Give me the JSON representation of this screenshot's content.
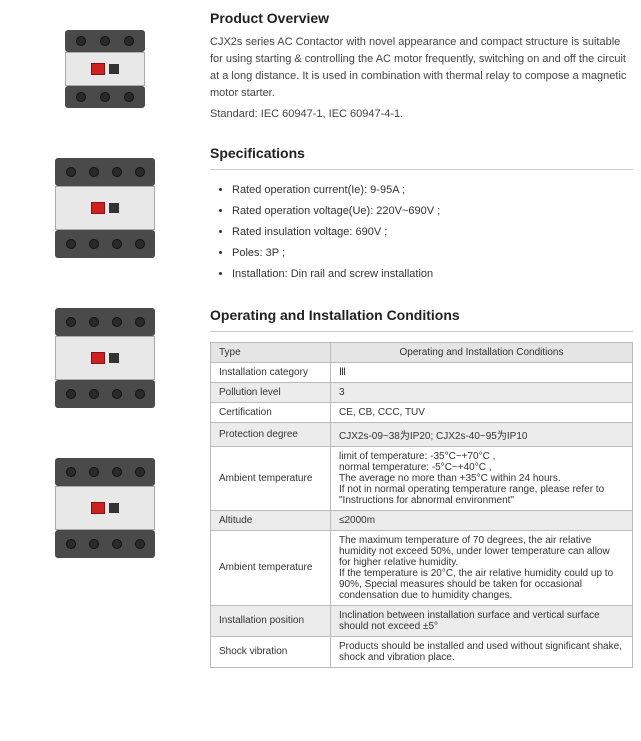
{
  "overview": {
    "heading": "Product Overview",
    "p1": "CJX2s series AC Contactor with novel appearance and compact structure is suitable for using starting & controlling the AC motor frequently, switching on and off the circuit at a long distance. It is used in combination with thermal relay to compose a magnetic motor starter.",
    "p2": "Standard: IEC 60947-1, IEC 60947-4-1."
  },
  "specs": {
    "heading": "Specifications",
    "items": [
      "Rated operation current(Ie): 9-95A ;",
      "Rated operation voltage(Ue): 220V~690V ;",
      "Rated insulation voltage: 690V ;",
      "Poles: 3P ;",
      "Installation: Din rail and screw installation"
    ]
  },
  "conditions": {
    "heading": "Operating and Installation Conditions",
    "header_type": "Type",
    "header_cond": "Operating and Installation Conditions",
    "rows": [
      {
        "label": "Installation category",
        "value": "Ⅲ",
        "bg": "white"
      },
      {
        "label": "Pollution level",
        "value": "3",
        "bg": "grey"
      },
      {
        "label": "Certification",
        "value": "CE, CB, CCC, TUV",
        "bg": "white"
      },
      {
        "label": "Protection degree",
        "value": "CJX2s-09~38为IP20; CJX2s-40~95为IP10",
        "bg": "grey"
      },
      {
        "label": "Ambient temperature",
        "value": "limit of temperature: -35°C~+70°C ,\nnormal temperature: -5°C~+40°C ,\nThe average no more than +35°C within 24 hours.\nIf not in normal operating temperature range, please refer to \"Instructions for abnormal environment\"",
        "bg": "white"
      },
      {
        "label": "Altitude",
        "value": "≤2000m",
        "bg": "grey"
      },
      {
        "label": "Ambient temperature",
        "value": "The maximum temperature of 70 degrees, the air relative humidity not exceed 50%, under lower temperature can allow for higher relative humidity.\nIf the temperature is 20°C, the air relative humidity could up to 90%, Special measures should be taken for occasional condensation due to humidity changes.",
        "bg": "white"
      },
      {
        "label": "Installation position",
        "value": "Inclination between installation surface and vertical surface should not exceed ±5°",
        "bg": "grey"
      },
      {
        "label": "Shock vibration",
        "value": "Products should be installed and used without significant shake, shock and vibration place.",
        "bg": "white"
      }
    ]
  },
  "colors": {
    "heading": "#222222",
    "body_text": "#444444",
    "table_border": "#bbbbbb",
    "grey_row": "#ececec",
    "white_row": "#ffffff",
    "header_bg": "#e5e5e5",
    "contactor_dark": "#4a4a4a",
    "contactor_light": "#e8e8e8",
    "red_button": "#cc2222"
  }
}
